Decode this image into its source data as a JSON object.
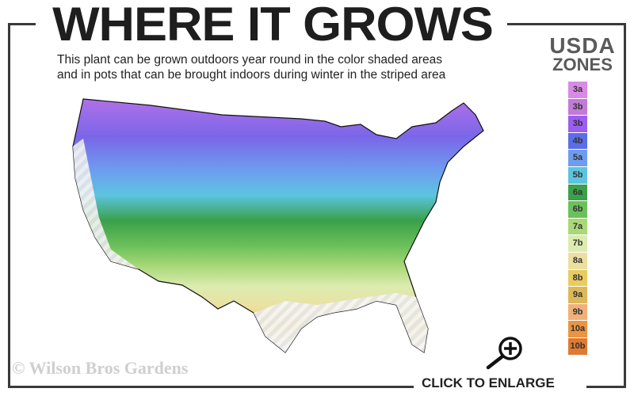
{
  "header": {
    "title": "WHERE IT GROWS",
    "subtitle_line1": "This plant can be grown outdoors year round in the color shaded areas",
    "subtitle_line2": "and in pots that can be brought indoors during winter in the striped area"
  },
  "legend": {
    "title_line1": "USDA",
    "title_line2": "ZONES",
    "zones": [
      {
        "label": "3a",
        "color": "#d98ae6"
      },
      {
        "label": "3b",
        "color": "#c27ad6"
      },
      {
        "label": "3b",
        "color": "#9b5ef0"
      },
      {
        "label": "4b",
        "color": "#5a6ee8"
      },
      {
        "label": "5a",
        "color": "#6e9cf0"
      },
      {
        "label": "5b",
        "color": "#5cc4e0"
      },
      {
        "label": "6a",
        "color": "#3aa04a"
      },
      {
        "label": "6b",
        "color": "#6cc05a"
      },
      {
        "label": "7a",
        "color": "#a8d878"
      },
      {
        "label": "7b",
        "color": "#dcecb0"
      },
      {
        "label": "8a",
        "color": "#ece0a0"
      },
      {
        "label": "8b",
        "color": "#e8cc60"
      },
      {
        "label": "9a",
        "color": "#dcb858"
      },
      {
        "label": "9b",
        "color": "#f0b07a"
      },
      {
        "label": "10a",
        "color": "#ec9440"
      },
      {
        "label": "10b",
        "color": "#e07a30"
      }
    ]
  },
  "footer": {
    "copyright": "© Wilson Bros Gardens",
    "enlarge_label": "CLICK TO ENLARGE"
  },
  "icons": {
    "enlarge": "magnifier-plus-icon"
  }
}
